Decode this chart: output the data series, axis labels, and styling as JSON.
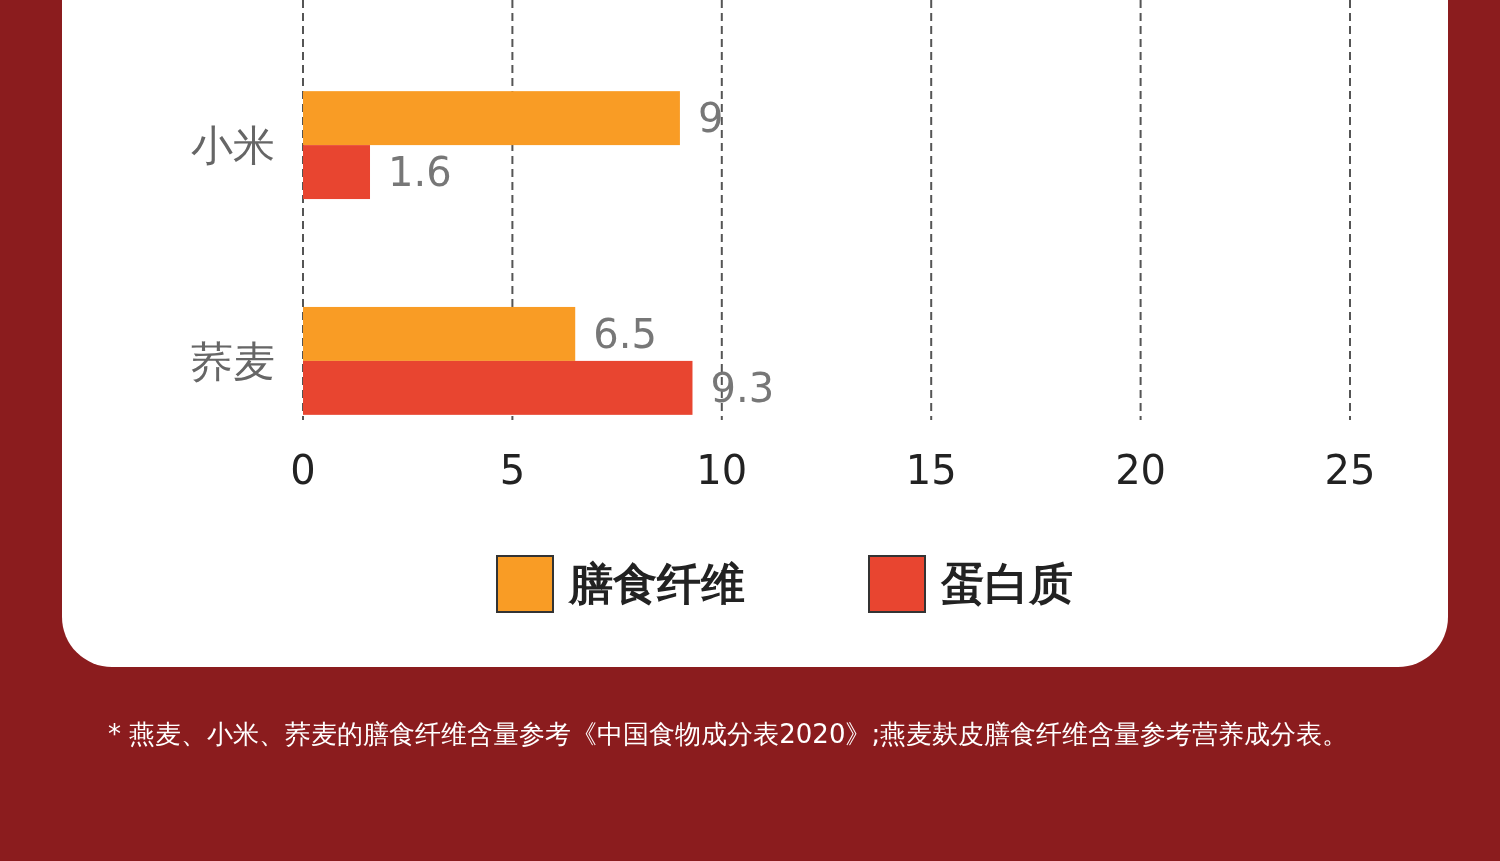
{
  "chart_data": {
    "type": "bar",
    "orientation": "horizontal",
    "categories": [
      "小米",
      "荞麦"
    ],
    "series": [
      {
        "name": "膳食纤维",
        "color": "#f99c25",
        "values": [
          9,
          6.5
        ]
      },
      {
        "name": "蛋白质",
        "color": "#e84530",
        "values": [
          1.6,
          9.3
        ]
      }
    ],
    "xlim": [
      0,
      25
    ],
    "xticks": [
      0,
      5,
      10,
      15,
      20,
      25
    ],
    "grid": "x",
    "data_labels": true,
    "legend": "bottom",
    "annotations": [
      "* 燕麦、小米、荞麦的膳食纤维含量参考《中国食物成分表2020》;燕麦麸皮膳食纤维含量参考营养成分表。"
    ]
  }
}
